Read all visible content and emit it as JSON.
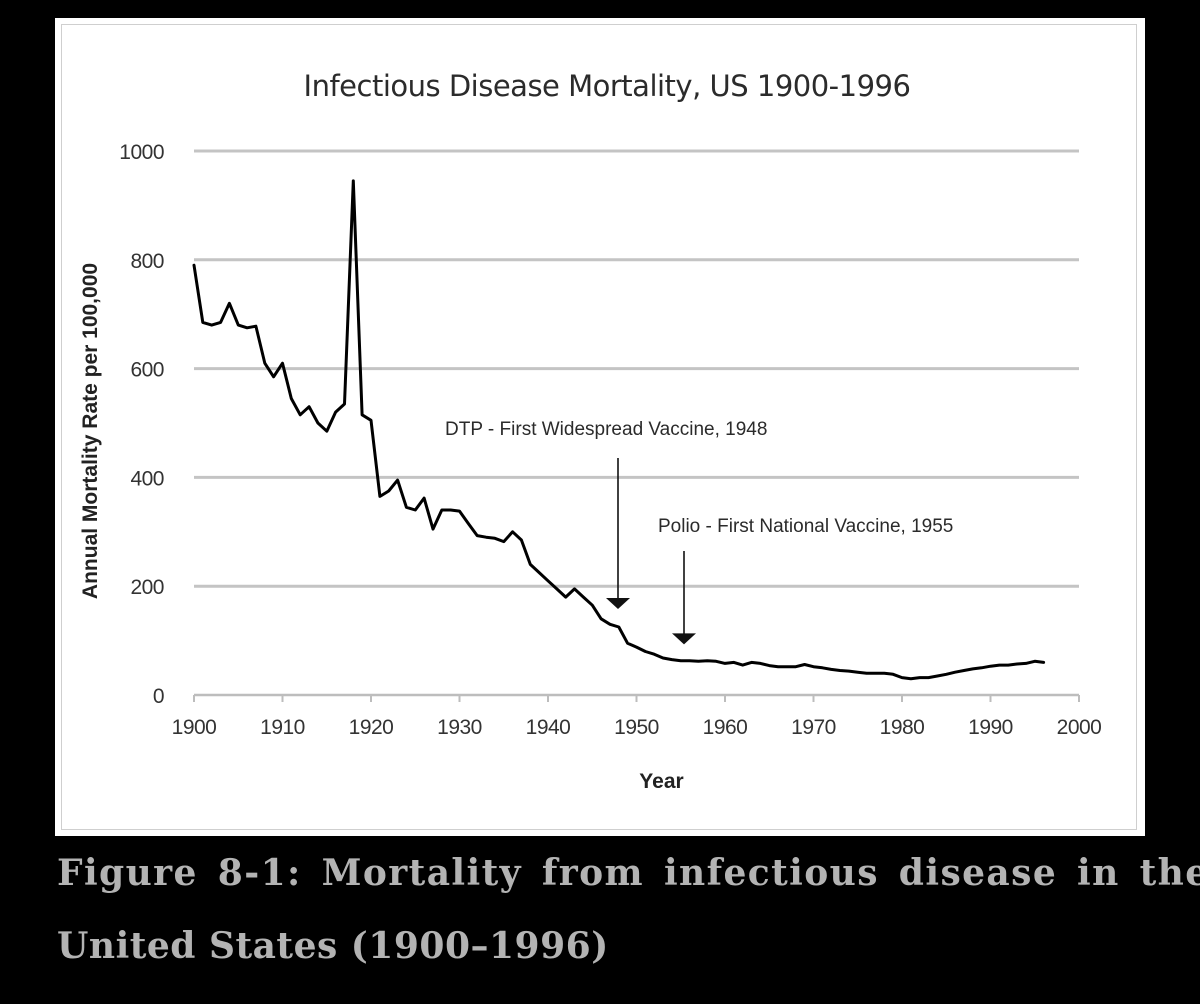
{
  "chart_data": {
    "type": "line",
    "title": "Infectious Disease Mortality, US 1900-1996",
    "xlabel": "Year",
    "ylabel": "Annual Mortality Rate per 100,000",
    "xlim": [
      1900,
      2000
    ],
    "ylim": [
      0,
      1000
    ],
    "xticks": [
      1900,
      1910,
      1920,
      1930,
      1940,
      1950,
      1960,
      1970,
      1980,
      1990,
      2000
    ],
    "yticks": [
      0,
      200,
      400,
      600,
      800,
      1000
    ],
    "grid": "horizontal",
    "series": [
      {
        "name": "Infectious disease mortality",
        "x": [
          1900,
          1901,
          1902,
          1903,
          1904,
          1905,
          1906,
          1907,
          1908,
          1909,
          1910,
          1911,
          1912,
          1913,
          1914,
          1915,
          1916,
          1917,
          1918,
          1919,
          1920,
          1921,
          1922,
          1923,
          1924,
          1925,
          1926,
          1927,
          1928,
          1929,
          1930,
          1931,
          1932,
          1933,
          1934,
          1935,
          1936,
          1937,
          1938,
          1939,
          1940,
          1941,
          1942,
          1943,
          1944,
          1945,
          1946,
          1947,
          1948,
          1949,
          1950,
          1951,
          1952,
          1953,
          1954,
          1955,
          1956,
          1957,
          1958,
          1959,
          1960,
          1961,
          1962,
          1963,
          1964,
          1965,
          1966,
          1967,
          1968,
          1969,
          1970,
          1971,
          1972,
          1973,
          1974,
          1975,
          1976,
          1977,
          1978,
          1979,
          1980,
          1981,
          1982,
          1983,
          1984,
          1985,
          1986,
          1987,
          1988,
          1989,
          1990,
          1991,
          1992,
          1993,
          1994,
          1995,
          1996
        ],
        "values": [
          790,
          685,
          680,
          685,
          720,
          680,
          675,
          678,
          610,
          585,
          610,
          545,
          515,
          530,
          500,
          485,
          520,
          535,
          945,
          515,
          505,
          365,
          375,
          395,
          345,
          340,
          362,
          305,
          340,
          340,
          338,
          315,
          293,
          290,
          288,
          282,
          300,
          285,
          240,
          225,
          210,
          195,
          180,
          195,
          180,
          165,
          140,
          130,
          125,
          95,
          88,
          80,
          75,
          68,
          65,
          63,
          63,
          62,
          63,
          62,
          58,
          60,
          55,
          60,
          58,
          54,
          52,
          52,
          52,
          56,
          52,
          50,
          47,
          45,
          44,
          42,
          40,
          40,
          40,
          38,
          32,
          30,
          32,
          32,
          35,
          38,
          42,
          45,
          48,
          50,
          53,
          55,
          55,
          57,
          58,
          62,
          60
        ]
      }
    ],
    "annotations": [
      {
        "text": "DTP - First Widespread Vaccine, 1948",
        "x": 1948,
        "y": 160
      },
      {
        "text": "Polio - First National Vaccine, 1955",
        "x": 1955,
        "y": 95
      }
    ]
  },
  "caption": {
    "line1": "Figure 8-1: Mortality from infectious disease in the",
    "line2": "United States (1900–1996)"
  },
  "colors": {
    "background": "#000000",
    "panel": "#ffffff",
    "line": "#000000",
    "grid": "#c4c4c4",
    "axis": "#bdbdbd",
    "text": "#333333",
    "caption": "#b3b3b3"
  }
}
